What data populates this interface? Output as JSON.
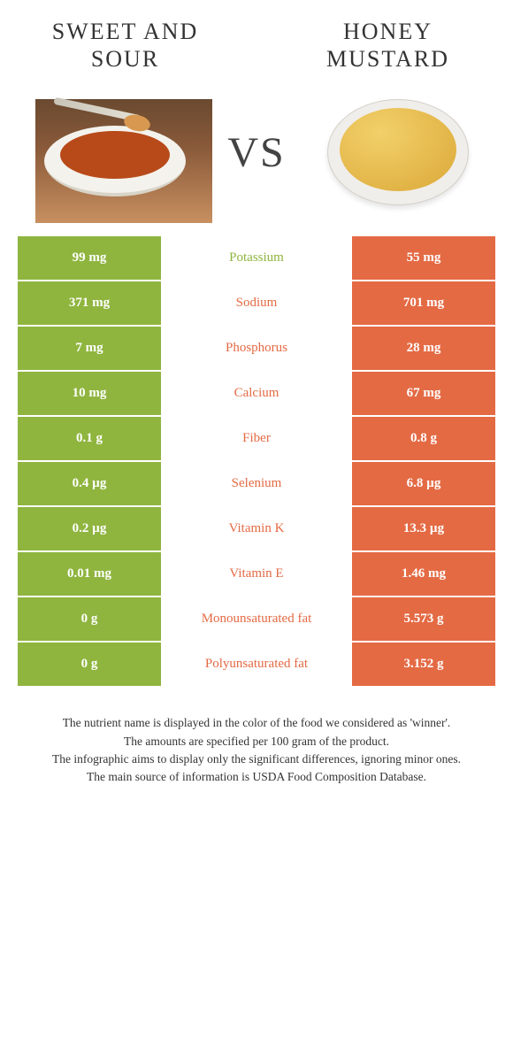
{
  "colors": {
    "green": "#8fb53f",
    "orange": "#e46a44",
    "white": "#ffffff",
    "text_dark": "#333333"
  },
  "title_left": "SWEET AND SOUR",
  "title_right": "HONEY MUSTARD",
  "vs_label": "VS",
  "rows": [
    {
      "left": "99 mg",
      "label": "Potassium",
      "right": "55 mg",
      "winner": "left"
    },
    {
      "left": "371 mg",
      "label": "Sodium",
      "right": "701 mg",
      "winner": "right"
    },
    {
      "left": "7 mg",
      "label": "Phosphorus",
      "right": "28 mg",
      "winner": "right"
    },
    {
      "left": "10 mg",
      "label": "Calcium",
      "right": "67 mg",
      "winner": "right"
    },
    {
      "left": "0.1 g",
      "label": "Fiber",
      "right": "0.8 g",
      "winner": "right"
    },
    {
      "left": "0.4 µg",
      "label": "Selenium",
      "right": "6.8 µg",
      "winner": "right"
    },
    {
      "left": "0.2 µg",
      "label": "Vitamin K",
      "right": "13.3 µg",
      "winner": "right"
    },
    {
      "left": "0.01 mg",
      "label": "Vitamin E",
      "right": "1.46 mg",
      "winner": "right"
    },
    {
      "left": "0 g",
      "label": "Monounsaturated fat",
      "right": "5.573 g",
      "winner": "right"
    },
    {
      "left": "0 g",
      "label": "Polyunsaturated fat",
      "right": "3.152 g",
      "winner": "right"
    }
  ],
  "footnotes": [
    "The nutrient name is displayed in the color of the food we considered as 'winner'.",
    "The amounts are specified per 100 gram of the product.",
    "The infographic aims to display only the significant differences, ignoring minor ones.",
    "The main source of information is USDA Food Composition Database."
  ]
}
